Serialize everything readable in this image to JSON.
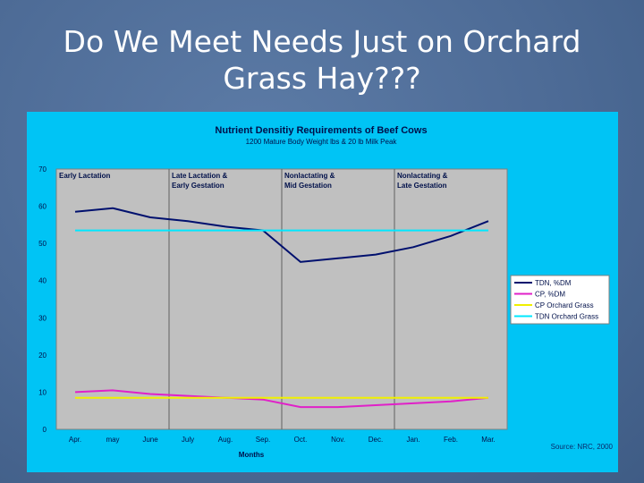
{
  "slide": {
    "title_line1": "Do We Meet Needs Just on Orchard",
    "title_line2": "Grass Hay???"
  },
  "chart_data": {
    "type": "line",
    "title": "Nutrient Densitiy Requirements of Beef Cows",
    "subtitle": "1200 Mature Body Weight lbs & 20 lb Milk Peak",
    "xlabel": "Months",
    "ylabel": "",
    "categories": [
      "Apr.",
      "may",
      "June",
      "July",
      "Aug.",
      "Sep.",
      "Oct.",
      "Nov.",
      "Dec.",
      "Jan.",
      "Feb.",
      "Mar."
    ],
    "ylim": [
      0,
      70
    ],
    "yticks": [
      0,
      10,
      20,
      30,
      40,
      50,
      60,
      70
    ],
    "grid": false,
    "legend_position": "right",
    "phases": [
      {
        "line1": "Early Lactation",
        "line2": ""
      },
      {
        "line1": "Late Lactation &",
        "line2": "Early Gestation"
      },
      {
        "line1": "Nonlactating &",
        "line2": "Mid Gestation"
      },
      {
        "line1": "Nonlactating &",
        "line2": "Late Gestation"
      }
    ],
    "series": [
      {
        "name": "TDN, %DM",
        "color": "#00106e",
        "values": [
          58.5,
          59.5,
          57,
          56,
          54.5,
          53.5,
          45,
          46,
          47,
          49,
          52,
          56
        ]
      },
      {
        "name": "CP, %DM",
        "color": "#e020c8",
        "values": [
          10,
          10.5,
          9.5,
          9,
          8.5,
          8,
          6,
          6,
          6.5,
          7,
          7.5,
          8.5
        ]
      },
      {
        "name": "CP Orchard Grass",
        "color": "#f0f000",
        "values": [
          8.5,
          8.5,
          8.5,
          8.5,
          8.5,
          8.5,
          8.5,
          8.5,
          8.5,
          8.5,
          8.5,
          8.5
        ]
      },
      {
        "name": "TDN Orchard Grass",
        "color": "#00e8ff",
        "values": [
          53.5,
          53.5,
          53.5,
          53.5,
          53.5,
          53.5,
          53.5,
          53.5,
          53.5,
          53.5,
          53.5,
          53.5
        ]
      }
    ],
    "source": "Source: NRC, 2000"
  }
}
